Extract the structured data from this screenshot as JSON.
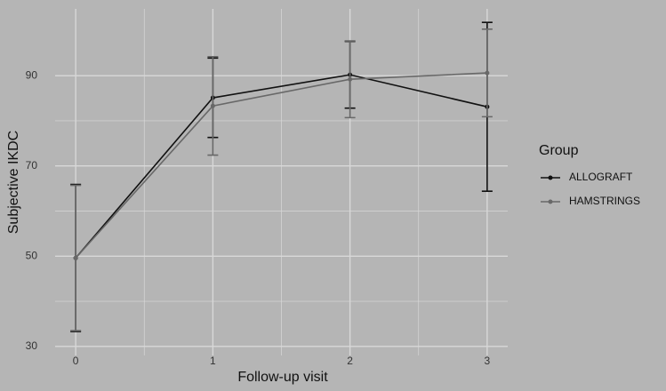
{
  "chart_data": {
    "type": "line",
    "x_label": "Follow-up visit",
    "y_label": "Subjective IKDC",
    "x": [
      0,
      1,
      2,
      3
    ],
    "xlim": [
      -0.15,
      3.15
    ],
    "xticks": [
      0,
      1,
      2,
      3
    ],
    "ylim": [
      28,
      104.8
    ],
    "yticks": [
      30,
      50,
      70,
      90
    ],
    "grid": true,
    "legend_title": "Group",
    "series": [
      {
        "name": "ALLOGRAFT",
        "color": "#111111",
        "values": [
          49.6,
          85.1,
          90.2,
          83.1
        ],
        "errors": [
          16.3,
          8.8,
          7.4,
          18.7
        ]
      },
      {
        "name": "HAMSTRINGS",
        "color": "#686868",
        "values": [
          49.6,
          83.3,
          89.2,
          90.6
        ],
        "errors": [
          16.1,
          10.9,
          8.5,
          9.7
        ]
      }
    ]
  }
}
